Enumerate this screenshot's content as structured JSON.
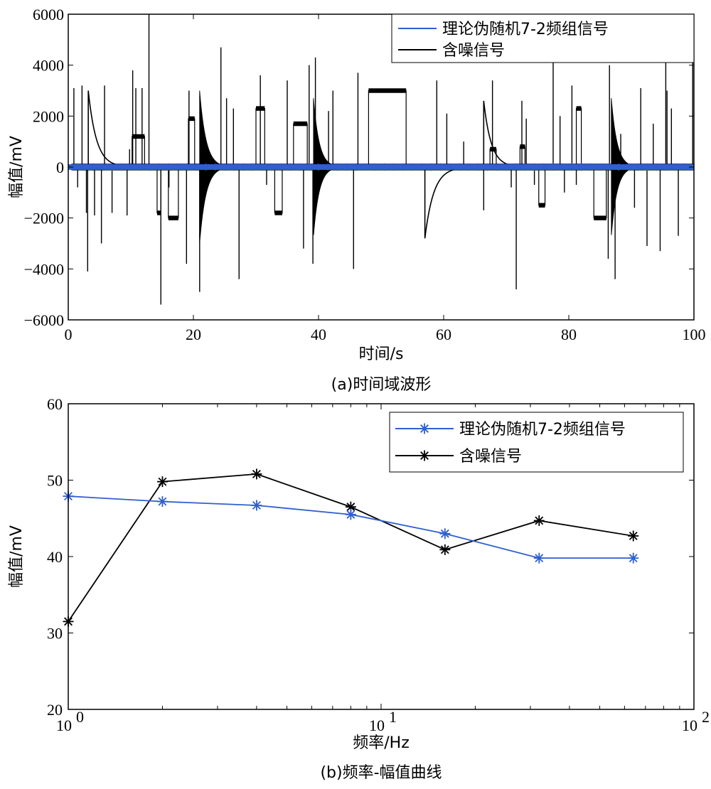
{
  "colors": {
    "theory": "#2f5fd0",
    "noisy": "#000000"
  },
  "chart_data": [
    {
      "type": "line",
      "caption": "(a)时间域波形",
      "xlabel": "时间/s",
      "ylabel": "幅值/mV",
      "xlim": [
        0,
        100
      ],
      "ylim": [
        -6000,
        6000
      ],
      "xticks": [
        0,
        20,
        40,
        60,
        80,
        100
      ],
      "yticks": [
        -6000,
        -4000,
        -2000,
        0,
        2000,
        4000,
        6000
      ],
      "xtick_labels": [
        "0",
        "20",
        "40",
        "60",
        "80",
        "100"
      ],
      "ytick_labels": [
        "−6000",
        "−4000",
        "−2000",
        "0",
        "2000",
        "4000",
        "6000"
      ],
      "legend_position": "top-right",
      "series": [
        {
          "name": "理论伪随机7-2频组信号",
          "color": "#2f5fd0",
          "x": [
            0,
            100
          ],
          "y": [
            0,
            0
          ]
        },
        {
          "name": "含噪信号",
          "color": "#000000",
          "steps": [
            {
              "x0": 10.2,
              "x1": 12.2,
              "y": 1200
            },
            {
              "x0": 14.2,
              "x1": 14.8,
              "y": -1800
            },
            {
              "x0": 16.0,
              "x1": 17.6,
              "y": -2000
            },
            {
              "x0": 19.2,
              "x1": 20.2,
              "y": 1900
            },
            {
              "x0": 30.0,
              "x1": 31.4,
              "y": 2300
            },
            {
              "x0": 33.0,
              "x1": 34.2,
              "y": -1800
            },
            {
              "x0": 36.0,
              "x1": 38.2,
              "y": 1700
            },
            {
              "x0": 48.0,
              "x1": 54.0,
              "y": 3000
            },
            {
              "x0": 67.4,
              "x1": 68.4,
              "y": 700
            },
            {
              "x0": 72.2,
              "x1": 73.0,
              "y": 800
            },
            {
              "x0": 75.2,
              "x1": 76.2,
              "y": -1500
            },
            {
              "x0": 81.2,
              "x1": 82.0,
              "y": 2300
            },
            {
              "x0": 84.0,
              "x1": 86.0,
              "y": -2000
            }
          ],
          "decays": [
            {
              "x": 3.2,
              "y": 3000,
              "tau": 1.3,
              "osc": false
            },
            {
              "x": 21.0,
              "y": 3000,
              "tau": 1.0,
              "osc": true
            },
            {
              "x": 39.2,
              "y": 2700,
              "tau": 0.9,
              "osc": true
            },
            {
              "x": 57.0,
              "y": -2800,
              "tau": 1.4,
              "osc": false
            },
            {
              "x": 66.4,
              "y": 2600,
              "tau": 1.2,
              "osc": false
            },
            {
              "x": 86.8,
              "y": 2700,
              "tau": 0.9,
              "osc": true
            }
          ],
          "spikes": [
            [
              0.9,
              3100
            ],
            [
              1.5,
              -800
            ],
            [
              2.2,
              3200
            ],
            [
              2.9,
              -1800
            ],
            [
              3.1,
              -4100
            ],
            [
              4.2,
              -1900
            ],
            [
              5.3,
              -3000
            ],
            [
              5.8,
              3200
            ],
            [
              7.0,
              -1800
            ],
            [
              9.4,
              -1900
            ],
            [
              9.8,
              700
            ],
            [
              10.3,
              3800
            ],
            [
              10.8,
              3100
            ],
            [
              11.8,
              3100
            ],
            [
              12.9,
              6000
            ],
            [
              14.8,
              -5400
            ],
            [
              16.1,
              -800
            ],
            [
              18.9,
              -3800
            ],
            [
              19.3,
              3000
            ],
            [
              21.0,
              -4900
            ],
            [
              24.4,
              4700
            ],
            [
              25.3,
              2700
            ],
            [
              26.4,
              2300
            ],
            [
              27.3,
              -4400
            ],
            [
              30.7,
              3600
            ],
            [
              31.7,
              -700
            ],
            [
              35.0,
              3400
            ],
            [
              37.6,
              -3200
            ],
            [
              38.5,
              4000
            ],
            [
              39.1,
              -3800
            ],
            [
              39.5,
              4300
            ],
            [
              41.6,
              2200
            ],
            [
              42.3,
              3000
            ],
            [
              45.6,
              -4000
            ],
            [
              46.3,
              3700
            ],
            [
              58.9,
              3400
            ],
            [
              60.5,
              2100
            ],
            [
              63.2,
              1000
            ],
            [
              66.4,
              -1700
            ],
            [
              67.8,
              3400
            ],
            [
              70.8,
              -800
            ],
            [
              71.6,
              -4800
            ],
            [
              72.5,
              2600
            ],
            [
              73.2,
              1900
            ],
            [
              74.5,
              -700
            ],
            [
              77.5,
              4100
            ],
            [
              78.6,
              2000
            ],
            [
              79.3,
              -1000
            ],
            [
              80.5,
              3200
            ],
            [
              81.2,
              -700
            ],
            [
              86.3,
              -3600
            ],
            [
              86.5,
              4000
            ],
            [
              87.4,
              -4400
            ],
            [
              88.3,
              1300
            ],
            [
              90.5,
              -1600
            ],
            [
              91.5,
              3100
            ],
            [
              92.5,
              -3100
            ],
            [
              93.5,
              1700
            ],
            [
              94.6,
              -3300
            ],
            [
              95.5,
              4400
            ],
            [
              95.7,
              3000
            ],
            [
              96.4,
              2300
            ],
            [
              97.5,
              -2700
            ],
            [
              99.8,
              4200
            ]
          ]
        }
      ]
    },
    {
      "type": "line",
      "caption": "(b)频率-幅值曲线",
      "xlabel": "频率/Hz",
      "ylabel": "幅值/mV",
      "xscale": "log",
      "xlim": [
        1,
        100
      ],
      "ylim": [
        20,
        60
      ],
      "yticks": [
        20,
        30,
        40,
        50,
        60
      ],
      "ytick_labels": [
        "20",
        "30",
        "40",
        "50",
        "60"
      ],
      "xtick_bases": [
        "10",
        "10",
        "10"
      ],
      "xtick_exponents": [
        "0",
        "1",
        "2"
      ],
      "legend_position": "top-right",
      "series": [
        {
          "name": "理论伪随机7-2频组信号",
          "color": "#2f5fd0",
          "marker": "*",
          "x": [
            1,
            2,
            4,
            8,
            16,
            32,
            64
          ],
          "y": [
            47.9,
            47.2,
            46.7,
            45.5,
            43.0,
            39.8,
            39.8
          ]
        },
        {
          "name": "含噪信号",
          "color": "#000000",
          "marker": "*",
          "x": [
            1,
            2,
            4,
            8,
            16,
            32,
            64
          ],
          "y": [
            31.5,
            49.8,
            50.8,
            46.5,
            40.9,
            44.7,
            42.7
          ]
        }
      ]
    }
  ]
}
